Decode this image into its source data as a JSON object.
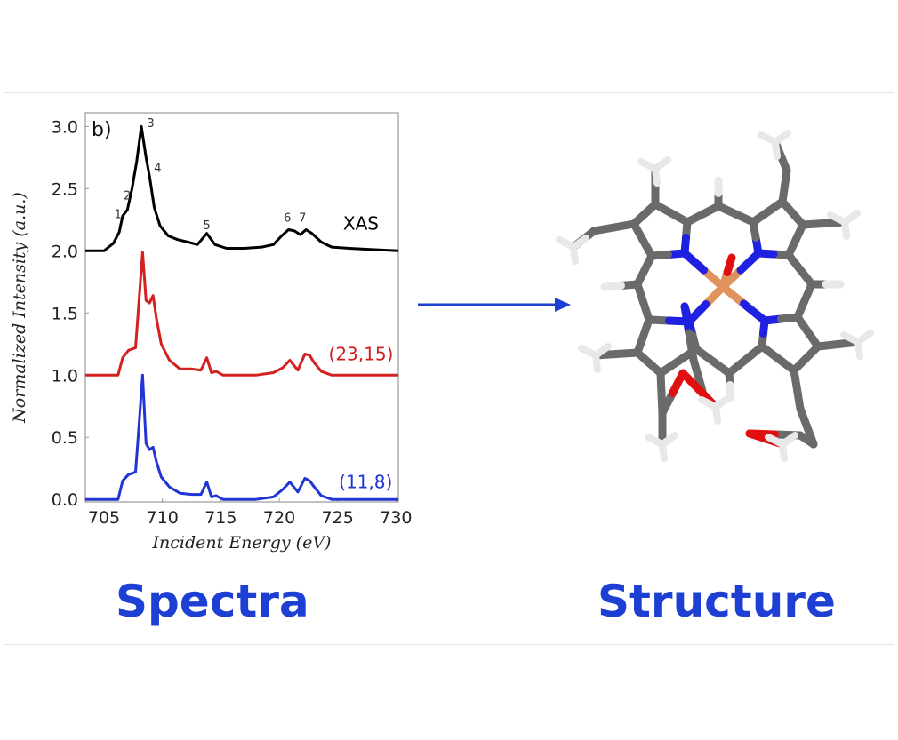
{
  "headings": {
    "left": "Spectra",
    "right": "Structure"
  },
  "colors": {
    "heading": "#1d3fd3",
    "arrow": "#1d3fd3",
    "xas": "#000000",
    "red": "#d42020",
    "blue": "#1f35d6",
    "carbon": "#6a6a6a",
    "nitrogen": "#2020e0",
    "oxygen": "#e01010",
    "hydrogen": "#e8e8e8",
    "iron": "#e0935c"
  },
  "arrow": {
    "direction": "right",
    "icon": "arrow-right-icon"
  },
  "chart_data": {
    "type": "line",
    "panel_label": "b)",
    "xlabel": "Incident Energy  (eV)",
    "ylabel": "Normalized Intensity  (a.u.)",
    "xlim": [
      703.4,
      730.2
    ],
    "ylim": [
      -0.02,
      3.11
    ],
    "xticks": [
      705,
      710,
      715,
      720,
      725,
      730
    ],
    "yticks": [
      0.0,
      0.5,
      1.0,
      1.5,
      2.0,
      2.5,
      3.0
    ],
    "ytick_labels": [
      "0.0",
      "0.5",
      "1.0",
      "1.5",
      "2.0",
      "2.5",
      "3.0"
    ],
    "grid": false,
    "series": [
      {
        "name": "XAS",
        "color": "#000000",
        "label_pos": [
          727.0,
          2.22
        ],
        "x": [
          703.4,
          705,
          705.8,
          706.3,
          706.6,
          707.0,
          707.4,
          707.8,
          708.2,
          708.6,
          708.9,
          709.3,
          709.8,
          710.5,
          711.3,
          712.2,
          713.0,
          713.8,
          714.5,
          715.5,
          717,
          718.5,
          719.5,
          720.2,
          720.8,
          721.3,
          721.8,
          722.3,
          722.8,
          723.6,
          724.5,
          726,
          728,
          730.2
        ],
        "y": [
          2.0,
          2.0,
          2.06,
          2.15,
          2.28,
          2.33,
          2.5,
          2.72,
          3.0,
          2.75,
          2.6,
          2.35,
          2.2,
          2.12,
          2.09,
          2.07,
          2.05,
          2.14,
          2.05,
          2.02,
          2.02,
          2.03,
          2.05,
          2.12,
          2.17,
          2.16,
          2.13,
          2.17,
          2.14,
          2.07,
          2.03,
          2.02,
          2.01,
          2.0
        ]
      },
      {
        "name": "(23,15)",
        "color": "#d42020",
        "label_pos": [
          727.0,
          1.17
        ],
        "x": [
          703.4,
          706.2,
          706.6,
          707.1,
          707.7,
          708.0,
          708.3,
          708.6,
          708.9,
          709.2,
          709.5,
          709.9,
          710.6,
          711.5,
          712.5,
          713.3,
          713.8,
          714.2,
          714.6,
          715.2,
          716,
          718,
          719.5,
          720.3,
          720.9,
          721.6,
          722.2,
          722.6,
          723.0,
          723.6,
          724.5,
          730.2
        ],
        "y": [
          1.0,
          1.0,
          1.14,
          1.2,
          1.22,
          1.6,
          1.99,
          1.6,
          1.58,
          1.64,
          1.45,
          1.25,
          1.12,
          1.05,
          1.05,
          1.04,
          1.14,
          1.02,
          1.03,
          1.0,
          1.0,
          1.0,
          1.02,
          1.06,
          1.12,
          1.04,
          1.17,
          1.16,
          1.1,
          1.03,
          1.0,
          1.0
        ]
      },
      {
        "name": "(11,8)",
        "color": "#1f35d6",
        "label_pos": [
          727.4,
          0.14
        ],
        "x": [
          703.4,
          706.2,
          706.6,
          707.1,
          707.7,
          708.0,
          708.3,
          708.6,
          708.9,
          709.2,
          709.5,
          709.9,
          710.6,
          711.5,
          712.5,
          713.3,
          713.8,
          714.2,
          714.6,
          715.2,
          716,
          718,
          719.5,
          720.3,
          720.9,
          721.6,
          722.2,
          722.6,
          723.0,
          723.6,
          724.5,
          730.2
        ],
        "y": [
          0.0,
          0.0,
          0.15,
          0.2,
          0.22,
          0.6,
          1.0,
          0.45,
          0.4,
          0.42,
          0.3,
          0.18,
          0.1,
          0.05,
          0.04,
          0.04,
          0.14,
          0.02,
          0.03,
          0.0,
          0.0,
          0.0,
          0.02,
          0.08,
          0.14,
          0.06,
          0.17,
          0.15,
          0.1,
          0.03,
          0.0,
          0.0
        ]
      }
    ],
    "annotations": [
      {
        "text": "1",
        "x": 706.2,
        "y": 2.3
      },
      {
        "text": "2",
        "x": 707.0,
        "y": 2.45
      },
      {
        "text": "3",
        "x": 709.0,
        "y": 3.03
      },
      {
        "text": "4",
        "x": 709.6,
        "y": 2.67
      },
      {
        "text": "5",
        "x": 713.8,
        "y": 2.21
      },
      {
        "text": "6",
        "x": 720.7,
        "y": 2.27
      },
      {
        "text": "7",
        "x": 722.0,
        "y": 2.27
      }
    ]
  }
}
